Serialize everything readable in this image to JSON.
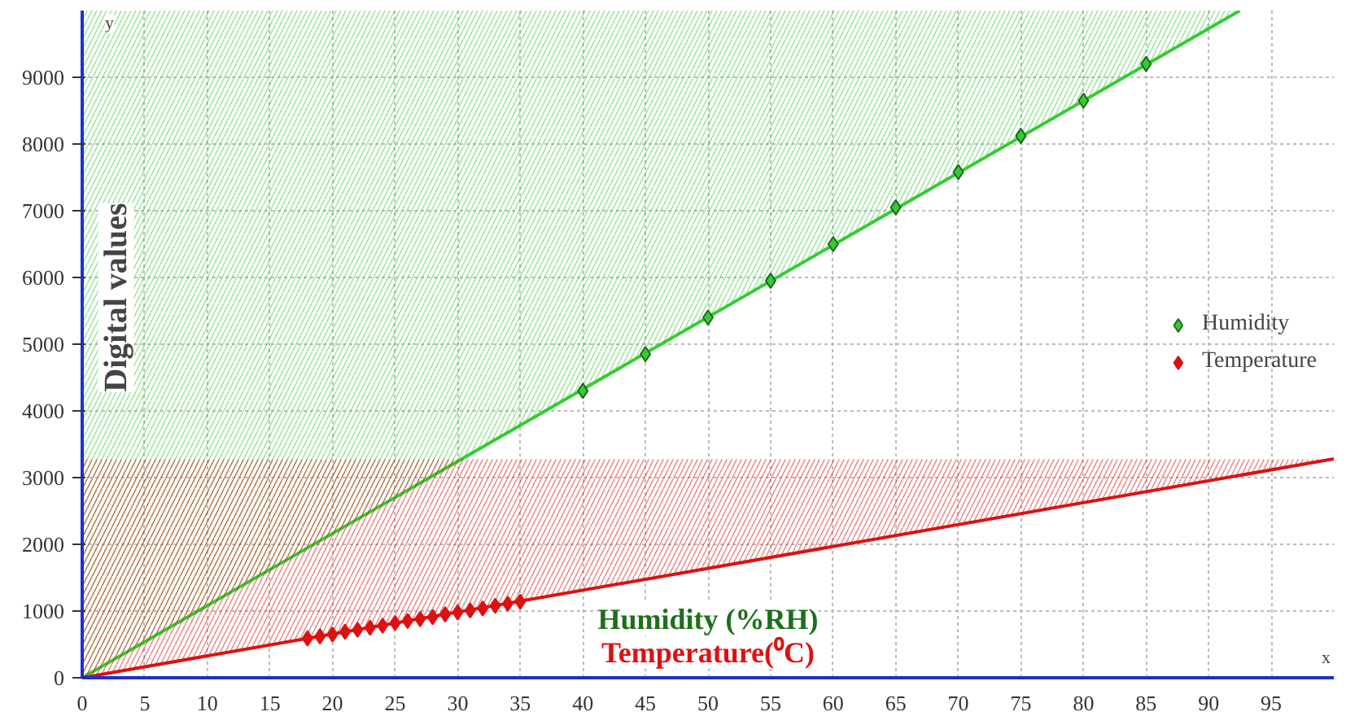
{
  "chart_data": {
    "type": "scatter",
    "xlabel": "Humidity (%RH)",
    "ylabel": "Digital values",
    "annotations": [
      "Temperature(⁰C)",
      "x",
      "y"
    ],
    "xlim": [
      0,
      100
    ],
    "ylim": [
      0,
      10000
    ],
    "xticks": [
      0,
      5,
      10,
      15,
      20,
      25,
      30,
      35,
      40,
      45,
      50,
      55,
      60,
      65,
      70,
      75,
      80,
      85,
      90,
      95
    ],
    "yticks": [
      0,
      1000,
      2000,
      3000,
      4000,
      5000,
      6000,
      7000,
      8000,
      9000
    ],
    "grid": true,
    "legend": "right",
    "series": [
      {
        "type": "line",
        "color": "#33cc33",
        "x": [
          0,
          92.5
        ],
        "values": [
          0,
          10000
        ],
        "lower": [
          0,
          10000
        ],
        "upper": [
          10000,
          10000
        ]
      },
      {
        "type": "line",
        "color": "#dd1111",
        "x": [
          0,
          100
        ],
        "values": [
          0,
          3280
        ],
        "lower": [
          0,
          3280
        ],
        "upper": [
          3280,
          3280
        ]
      },
      {
        "name": "Humidity",
        "color": "#33cc33",
        "x": [
          40,
          45,
          50,
          55,
          60,
          65,
          70,
          75,
          80,
          85
        ],
        "values": [
          4300,
          4850,
          5400,
          5950,
          6500,
          7050,
          7580,
          8120,
          8650,
          9200
        ]
      },
      {
        "name": "Temperature",
        "color": "#dd1111",
        "x": [
          18,
          19,
          20,
          21,
          22,
          23,
          24,
          25,
          26,
          27,
          28,
          29,
          30,
          31,
          32,
          33,
          34,
          35
        ],
        "values": [
          590,
          620,
          650,
          690,
          720,
          750,
          780,
          820,
          850,
          880,
          910,
          950,
          980,
          1010,
          1040,
          1080,
          1110,
          1140
        ]
      }
    ]
  }
}
